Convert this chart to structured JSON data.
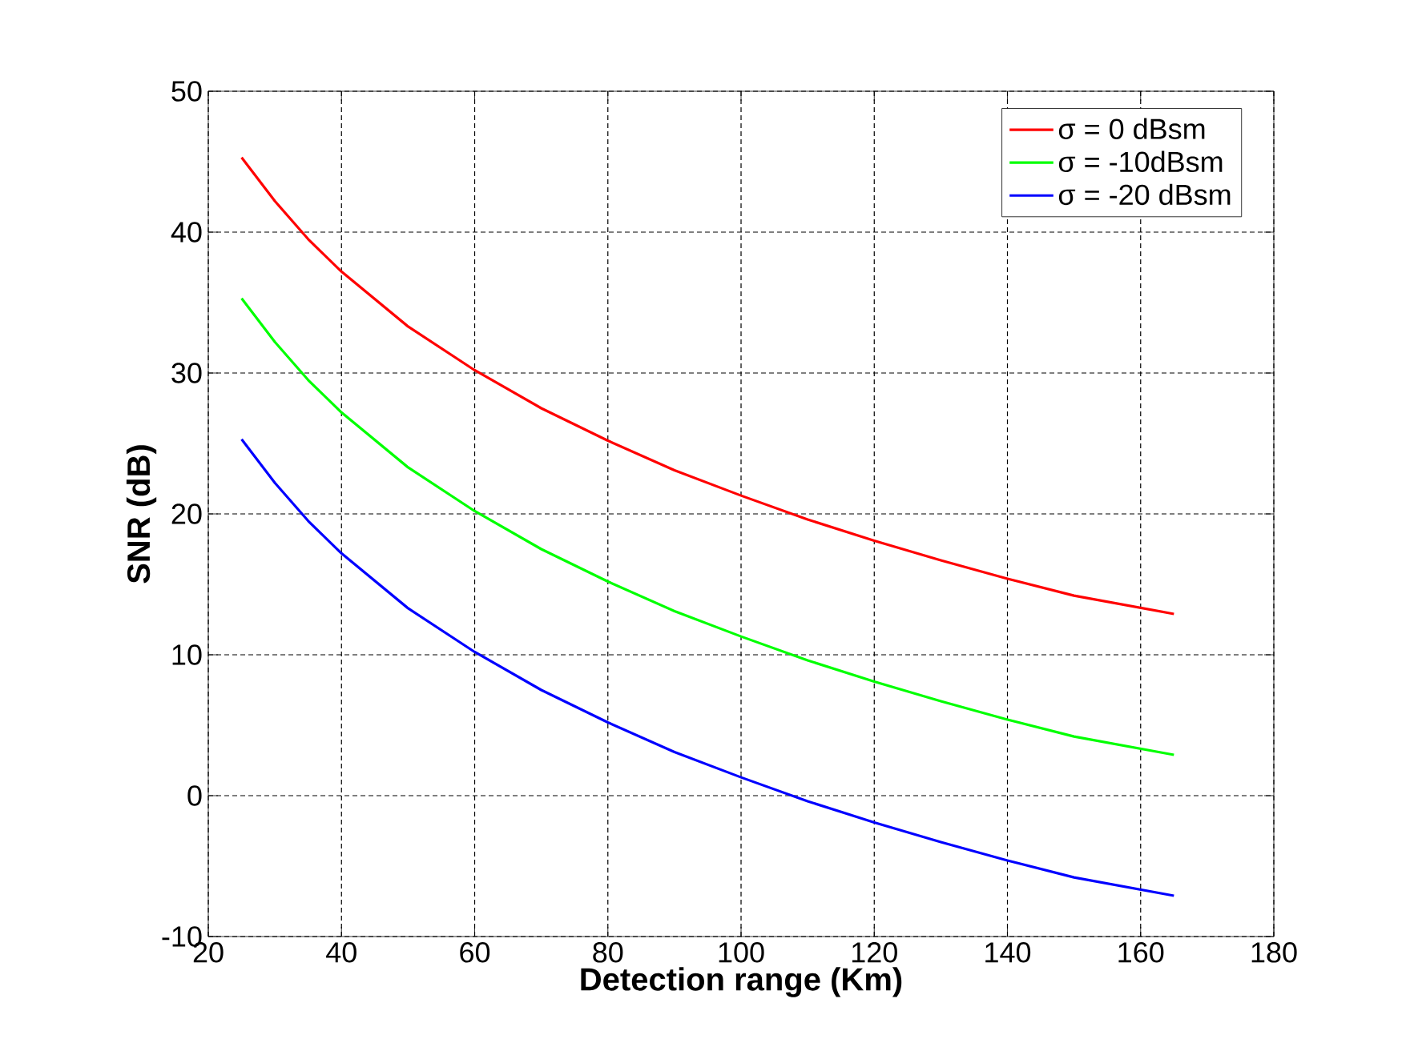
{
  "chart_data": {
    "type": "line",
    "xlabel": "Detection range (Km)",
    "ylabel": "SNR (dB)",
    "x": [
      25,
      30,
      35,
      40,
      50,
      60,
      70,
      80,
      90,
      100,
      110,
      120,
      130,
      140,
      150,
      165
    ],
    "series": [
      {
        "name": "σ = 0 dBsm",
        "color": "#ff0000",
        "values": [
          45.3,
          42.2,
          39.5,
          37.2,
          33.3,
          30.2,
          27.5,
          25.2,
          23.1,
          21.3,
          19.6,
          18.1,
          16.7,
          15.4,
          14.2,
          12.9
        ]
      },
      {
        "name": "σ = -10dBsm",
        "color": "#00ff00",
        "values": [
          35.3,
          32.2,
          29.5,
          27.2,
          23.3,
          20.2,
          17.5,
          15.2,
          13.1,
          11.3,
          9.6,
          8.1,
          6.7,
          5.4,
          4.2,
          2.9
        ]
      },
      {
        "name": "σ = -20 dBsm",
        "color": "#0000ff",
        "values": [
          25.3,
          22.2,
          19.5,
          17.2,
          13.3,
          10.2,
          7.5,
          5.2,
          3.1,
          1.3,
          -0.4,
          -1.9,
          -3.3,
          -4.6,
          -5.8,
          -7.1
        ]
      }
    ],
    "xlim": [
      20,
      180
    ],
    "ylim": [
      -10,
      50
    ],
    "xticks": [
      20,
      40,
      60,
      80,
      100,
      120,
      140,
      160,
      180
    ],
    "yticks": [
      -10,
      0,
      10,
      20,
      30,
      40,
      50
    ],
    "grid": true,
    "legend": "top right",
    "marker": "none",
    "line_style": "solid"
  }
}
